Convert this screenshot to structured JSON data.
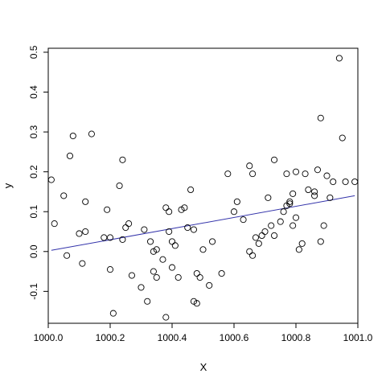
{
  "chart_data": {
    "type": "scatter",
    "title": "",
    "xlabel": "X",
    "ylabel": "y",
    "xlim": [
      1000.0,
      1001.0
    ],
    "ylim": [
      -0.18,
      0.51
    ],
    "xticks": [
      1000.0,
      1000.2,
      1000.4,
      1000.6,
      1000.8,
      1001.0
    ],
    "xtick_labels": [
      "1000.0",
      "1000.2",
      "1000.4",
      "1000.6",
      "1000.8",
      "1001.0"
    ],
    "yticks": [
      -0.1,
      0.0,
      0.1,
      0.2,
      0.3,
      0.4,
      0.5
    ],
    "ytick_labels": [
      "-0.1",
      "0.0",
      "0.1",
      "0.2",
      "0.3",
      "0.4",
      "0.5"
    ],
    "grid": false,
    "marker": "open-circle",
    "point_color": "#000000",
    "line_color": "#3333aa",
    "fit_line": {
      "x": [
        1000.01,
        1000.99
      ],
      "y": [
        0.003,
        0.14
      ]
    },
    "points": [
      {
        "x": 1000.01,
        "y": 0.18
      },
      {
        "x": 1000.02,
        "y": 0.07
      },
      {
        "x": 1000.05,
        "y": 0.14
      },
      {
        "x": 1000.06,
        "y": -0.01
      },
      {
        "x": 1000.07,
        "y": 0.24
      },
      {
        "x": 1000.08,
        "y": 0.29
      },
      {
        "x": 1000.1,
        "y": 0.045
      },
      {
        "x": 1000.11,
        "y": -0.03
      },
      {
        "x": 1000.12,
        "y": 0.125
      },
      {
        "x": 1000.12,
        "y": 0.05
      },
      {
        "x": 1000.14,
        "y": 0.295
      },
      {
        "x": 1000.18,
        "y": 0.035
      },
      {
        "x": 1000.19,
        "y": 0.105
      },
      {
        "x": 1000.2,
        "y": -0.045
      },
      {
        "x": 1000.2,
        "y": 0.035
      },
      {
        "x": 1000.21,
        "y": -0.155
      },
      {
        "x": 1000.23,
        "y": 0.165
      },
      {
        "x": 1000.24,
        "y": 0.23
      },
      {
        "x": 1000.24,
        "y": 0.03
      },
      {
        "x": 1000.25,
        "y": 0.06
      },
      {
        "x": 1000.26,
        "y": 0.07
      },
      {
        "x": 1000.27,
        "y": -0.06
      },
      {
        "x": 1000.3,
        "y": -0.09
      },
      {
        "x": 1000.31,
        "y": 0.055
      },
      {
        "x": 1000.32,
        "y": -0.125
      },
      {
        "x": 1000.33,
        "y": 0.025
      },
      {
        "x": 1000.34,
        "y": -0.05
      },
      {
        "x": 1000.34,
        "y": 0.0
      },
      {
        "x": 1000.35,
        "y": -0.065
      },
      {
        "x": 1000.35,
        "y": 0.005
      },
      {
        "x": 1000.37,
        "y": -0.02
      },
      {
        "x": 1000.38,
        "y": -0.165
      },
      {
        "x": 1000.38,
        "y": 0.11
      },
      {
        "x": 1000.39,
        "y": 0.1
      },
      {
        "x": 1000.39,
        "y": 0.05
      },
      {
        "x": 1000.4,
        "y": 0.025
      },
      {
        "x": 1000.4,
        "y": -0.04
      },
      {
        "x": 1000.41,
        "y": 0.015
      },
      {
        "x": 1000.42,
        "y": -0.065
      },
      {
        "x": 1000.43,
        "y": 0.105
      },
      {
        "x": 1000.44,
        "y": 0.11
      },
      {
        "x": 1000.45,
        "y": 0.06
      },
      {
        "x": 1000.46,
        "y": 0.155
      },
      {
        "x": 1000.47,
        "y": 0.055
      },
      {
        "x": 1000.47,
        "y": -0.125
      },
      {
        "x": 1000.48,
        "y": -0.13
      },
      {
        "x": 1000.48,
        "y": -0.055
      },
      {
        "x": 1000.49,
        "y": -0.065
      },
      {
        "x": 1000.5,
        "y": 0.005
      },
      {
        "x": 1000.52,
        "y": -0.085
      },
      {
        "x": 1000.53,
        "y": 0.025
      },
      {
        "x": 1000.56,
        "y": -0.055
      },
      {
        "x": 1000.58,
        "y": 0.195
      },
      {
        "x": 1000.6,
        "y": 0.1
      },
      {
        "x": 1000.61,
        "y": 0.125
      },
      {
        "x": 1000.63,
        "y": 0.08
      },
      {
        "x": 1000.65,
        "y": 0.215
      },
      {
        "x": 1000.65,
        "y": 0.0
      },
      {
        "x": 1000.66,
        "y": 0.195
      },
      {
        "x": 1000.66,
        "y": -0.01
      },
      {
        "x": 1000.67,
        "y": 0.035
      },
      {
        "x": 1000.68,
        "y": 0.02
      },
      {
        "x": 1000.69,
        "y": 0.04
      },
      {
        "x": 1000.7,
        "y": 0.05
      },
      {
        "x": 1000.71,
        "y": 0.135
      },
      {
        "x": 1000.72,
        "y": 0.065
      },
      {
        "x": 1000.73,
        "y": 0.23
      },
      {
        "x": 1000.73,
        "y": 0.04
      },
      {
        "x": 1000.75,
        "y": 0.075
      },
      {
        "x": 1000.76,
        "y": 0.1
      },
      {
        "x": 1000.77,
        "y": 0.195
      },
      {
        "x": 1000.77,
        "y": 0.115
      },
      {
        "x": 1000.78,
        "y": 0.125
      },
      {
        "x": 1000.78,
        "y": 0.12
      },
      {
        "x": 1000.79,
        "y": 0.145
      },
      {
        "x": 1000.79,
        "y": 0.065
      },
      {
        "x": 1000.8,
        "y": 0.085
      },
      {
        "x": 1000.8,
        "y": 0.2
      },
      {
        "x": 1000.81,
        "y": 0.005
      },
      {
        "x": 1000.82,
        "y": 0.02
      },
      {
        "x": 1000.83,
        "y": 0.195
      },
      {
        "x": 1000.84,
        "y": 0.155
      },
      {
        "x": 1000.86,
        "y": 0.15
      },
      {
        "x": 1000.86,
        "y": 0.14
      },
      {
        "x": 1000.87,
        "y": 0.205
      },
      {
        "x": 1000.88,
        "y": 0.335
      },
      {
        "x": 1000.88,
        "y": 0.025
      },
      {
        "x": 1000.89,
        "y": 0.065
      },
      {
        "x": 1000.9,
        "y": 0.19
      },
      {
        "x": 1000.91,
        "y": 0.135
      },
      {
        "x": 1000.92,
        "y": 0.175
      },
      {
        "x": 1000.94,
        "y": 0.485
      },
      {
        "x": 1000.95,
        "y": 0.285
      },
      {
        "x": 1000.96,
        "y": 0.175
      },
      {
        "x": 1000.99,
        "y": 0.175
      }
    ]
  }
}
